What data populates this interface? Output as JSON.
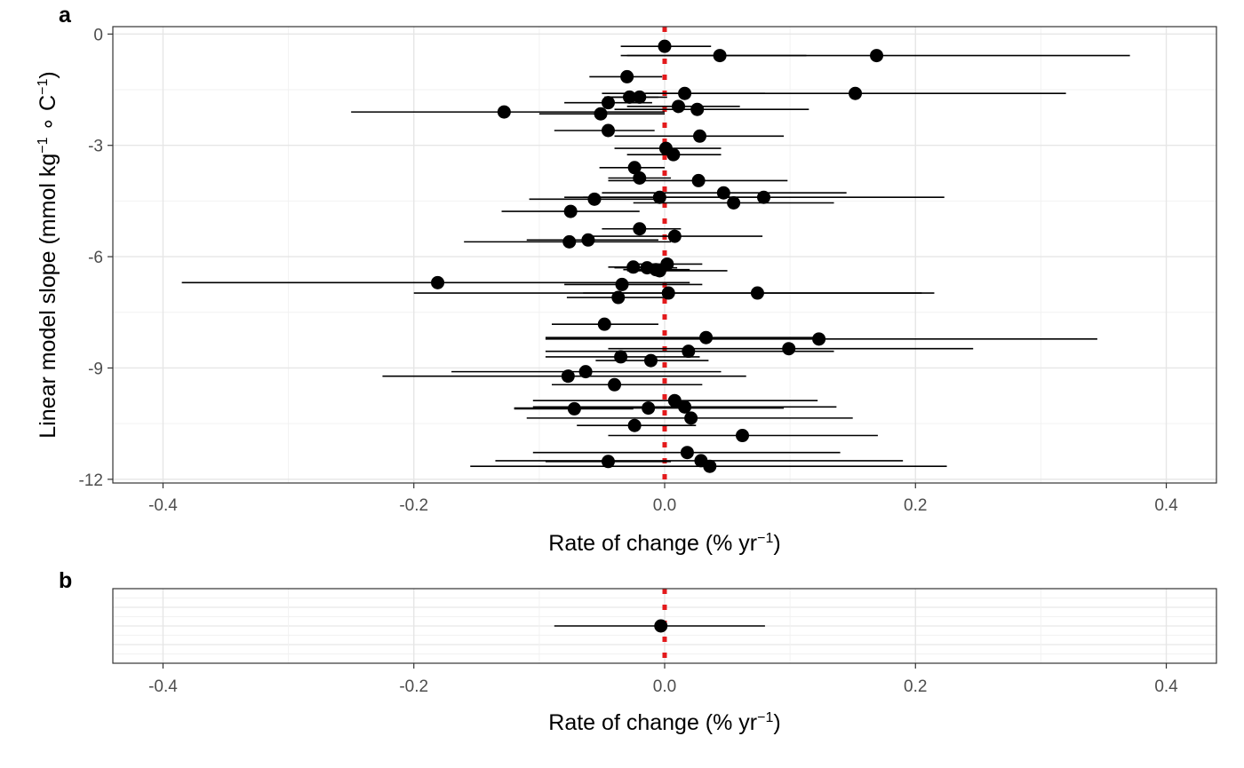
{
  "chart_data": [
    {
      "panel": "a",
      "type": "scatter",
      "style": "point estimates with horizontal error bars",
      "title": "",
      "xlabel": {
        "main": "Rate of change (% yr",
        "sup": "−1",
        "close": ")"
      },
      "ylabel": {
        "main": "Linear model slope (mmol kg",
        "sup1": "−1",
        "mid": " ∘ C",
        "sup2": "−1",
        "close": ")"
      },
      "xlim": [
        -0.44,
        0.44
      ],
      "ylim": [
        -12.1,
        0.2
      ],
      "x_ticks": [
        -0.4,
        -0.2,
        0.0,
        0.2,
        0.4
      ],
      "x_tick_labels": [
        "-0.4",
        "-0.2",
        "0.0",
        "0.2",
        "0.4"
      ],
      "y_ticks": [
        0,
        -3,
        -6,
        -9,
        -12
      ],
      "y_tick_labels": [
        "0",
        "-3",
        "-6",
        "-9",
        "-12"
      ],
      "reference_line": {
        "x": 0,
        "style": "dotted",
        "color": "#e31a1c"
      },
      "grid": true,
      "point_color": "#000000",
      "points": [
        {
          "y": -0.33,
          "x": 0.0,
          "lo": -0.035,
          "hi": 0.037
        },
        {
          "y": -0.58,
          "x": 0.044,
          "lo": -0.03,
          "hi": 0.113
        },
        {
          "y": -0.58,
          "x": 0.169,
          "lo": -0.035,
          "hi": 0.371
        },
        {
          "y": -1.15,
          "x": -0.03,
          "lo": -0.06,
          "hi": -0.002
        },
        {
          "y": -1.6,
          "x": 0.016,
          "lo": -0.05,
          "hi": 0.08
        },
        {
          "y": -1.6,
          "x": 0.152,
          "lo": -0.015,
          "hi": 0.32
        },
        {
          "y": -1.7,
          "x": -0.028,
          "lo": -0.048,
          "hi": -0.005
        },
        {
          "y": -1.7,
          "x": -0.02,
          "lo": -0.045,
          "hi": 0.002
        },
        {
          "y": -1.85,
          "x": -0.045,
          "lo": -0.08,
          "hi": -0.01
        },
        {
          "y": -1.95,
          "x": 0.011,
          "lo": -0.03,
          "hi": 0.06
        },
        {
          "y": -2.03,
          "x": 0.026,
          "lo": -0.04,
          "hi": 0.115
        },
        {
          "y": -2.1,
          "x": -0.128,
          "lo": -0.25,
          "hi": 0.0
        },
        {
          "y": -2.15,
          "x": -0.051,
          "lo": -0.1,
          "hi": 0.0
        },
        {
          "y": -2.6,
          "x": -0.045,
          "lo": -0.088,
          "hi": -0.008
        },
        {
          "y": -2.75,
          "x": 0.028,
          "lo": -0.04,
          "hi": 0.095
        },
        {
          "y": -3.08,
          "x": 0.001,
          "lo": -0.04,
          "hi": 0.045
        },
        {
          "y": -3.25,
          "x": 0.007,
          "lo": -0.03,
          "hi": 0.045
        },
        {
          "y": -3.6,
          "x": -0.024,
          "lo": -0.052,
          "hi": 0.0
        },
        {
          "y": -3.88,
          "x": -0.02,
          "lo": -0.045,
          "hi": 0.005
        },
        {
          "y": -3.95,
          "x": 0.027,
          "lo": -0.045,
          "hi": 0.098
        },
        {
          "y": -4.28,
          "x": 0.047,
          "lo": -0.05,
          "hi": 0.145
        },
        {
          "y": -4.4,
          "x": -0.004,
          "lo": -0.08,
          "hi": 0.08
        },
        {
          "y": -4.4,
          "x": 0.079,
          "lo": -0.065,
          "hi": 0.223
        },
        {
          "y": -4.45,
          "x": -0.056,
          "lo": -0.108,
          "hi": -0.005
        },
        {
          "y": -4.55,
          "x": 0.055,
          "lo": -0.025,
          "hi": 0.135
        },
        {
          "y": -4.78,
          "x": -0.075,
          "lo": -0.13,
          "hi": -0.02
        },
        {
          "y": -5.25,
          "x": -0.02,
          "lo": -0.05,
          "hi": 0.013
        },
        {
          "y": -5.45,
          "x": 0.008,
          "lo": -0.06,
          "hi": 0.078
        },
        {
          "y": -5.55,
          "x": -0.061,
          "lo": -0.11,
          "hi": -0.005
        },
        {
          "y": -5.6,
          "x": -0.076,
          "lo": -0.16,
          "hi": 0.005
        },
        {
          "y": -6.2,
          "x": 0.002,
          "lo": -0.025,
          "hi": 0.03
        },
        {
          "y": -6.28,
          "x": -0.025,
          "lo": -0.045,
          "hi": 0.0
        },
        {
          "y": -6.3,
          "x": -0.014,
          "lo": -0.04,
          "hi": 0.01
        },
        {
          "y": -6.35,
          "x": -0.007,
          "lo": -0.033,
          "hi": 0.02
        },
        {
          "y": -6.38,
          "x": -0.004,
          "lo": -0.03,
          "hi": 0.05
        },
        {
          "y": -6.7,
          "x": -0.181,
          "lo": -0.385,
          "hi": 0.02
        },
        {
          "y": -6.75,
          "x": -0.034,
          "lo": -0.08,
          "hi": 0.03
        },
        {
          "y": -6.98,
          "x": 0.003,
          "lo": -0.2,
          "hi": 0.205
        },
        {
          "y": -6.98,
          "x": 0.074,
          "lo": -0.065,
          "hi": 0.215
        },
        {
          "y": -7.1,
          "x": -0.037,
          "lo": -0.078,
          "hi": 0.002
        },
        {
          "y": -7.82,
          "x": -0.048,
          "lo": -0.09,
          "hi": -0.005
        },
        {
          "y": -8.18,
          "x": 0.033,
          "lo": -0.095,
          "hi": 0.12
        },
        {
          "y": -8.22,
          "x": 0.123,
          "lo": -0.095,
          "hi": 0.345
        },
        {
          "y": -8.48,
          "x": 0.099,
          "lo": -0.045,
          "hi": 0.246
        },
        {
          "y": -8.55,
          "x": 0.019,
          "lo": -0.095,
          "hi": 0.135
        },
        {
          "y": -8.7,
          "x": -0.035,
          "lo": -0.095,
          "hi": 0.028
        },
        {
          "y": -8.8,
          "x": -0.011,
          "lo": -0.055,
          "hi": 0.035
        },
        {
          "y": -9.1,
          "x": -0.063,
          "lo": -0.17,
          "hi": 0.045
        },
        {
          "y": -9.22,
          "x": -0.077,
          "lo": -0.225,
          "hi": 0.065
        },
        {
          "y": -9.45,
          "x": -0.04,
          "lo": -0.09,
          "hi": 0.03
        },
        {
          "y": -9.88,
          "x": 0.008,
          "lo": -0.105,
          "hi": 0.122
        },
        {
          "y": -10.05,
          "x": 0.016,
          "lo": -0.105,
          "hi": 0.137
        },
        {
          "y": -10.08,
          "x": -0.013,
          "lo": -0.12,
          "hi": 0.095
        },
        {
          "y": -10.1,
          "x": -0.072,
          "lo": -0.12,
          "hi": -0.025
        },
        {
          "y": -10.35,
          "x": 0.021,
          "lo": -0.11,
          "hi": 0.15
        },
        {
          "y": -10.55,
          "x": -0.024,
          "lo": -0.07,
          "hi": 0.025
        },
        {
          "y": -10.82,
          "x": 0.062,
          "lo": -0.045,
          "hi": 0.17
        },
        {
          "y": -11.28,
          "x": 0.018,
          "lo": -0.105,
          "hi": 0.14
        },
        {
          "y": -11.5,
          "x": 0.029,
          "lo": -0.135,
          "hi": 0.19
        },
        {
          "y": -11.52,
          "x": -0.045,
          "lo": -0.095,
          "hi": 0.005
        },
        {
          "y": -11.65,
          "x": 0.036,
          "lo": -0.155,
          "hi": 0.225
        }
      ]
    },
    {
      "panel": "b",
      "type": "scatter",
      "style": "point estimate with horizontal error bar",
      "title": "",
      "xlabel": {
        "main": "Rate of change (% yr",
        "sup": "−1",
        "close": ")"
      },
      "ylabel": "",
      "xlim": [
        -0.44,
        0.44
      ],
      "x_ticks": [
        -0.4,
        -0.2,
        0.0,
        0.2,
        0.4
      ],
      "x_tick_labels": [
        "-0.4",
        "-0.2",
        "0.0",
        "0.2",
        "0.4"
      ],
      "reference_line": {
        "x": 0,
        "style": "dotted",
        "color": "#e31a1c"
      },
      "grid": true,
      "points": [
        {
          "x": -0.003,
          "lo": -0.088,
          "hi": 0.08
        }
      ]
    }
  ],
  "panel_tags": {
    "a": "a",
    "b": "b"
  }
}
